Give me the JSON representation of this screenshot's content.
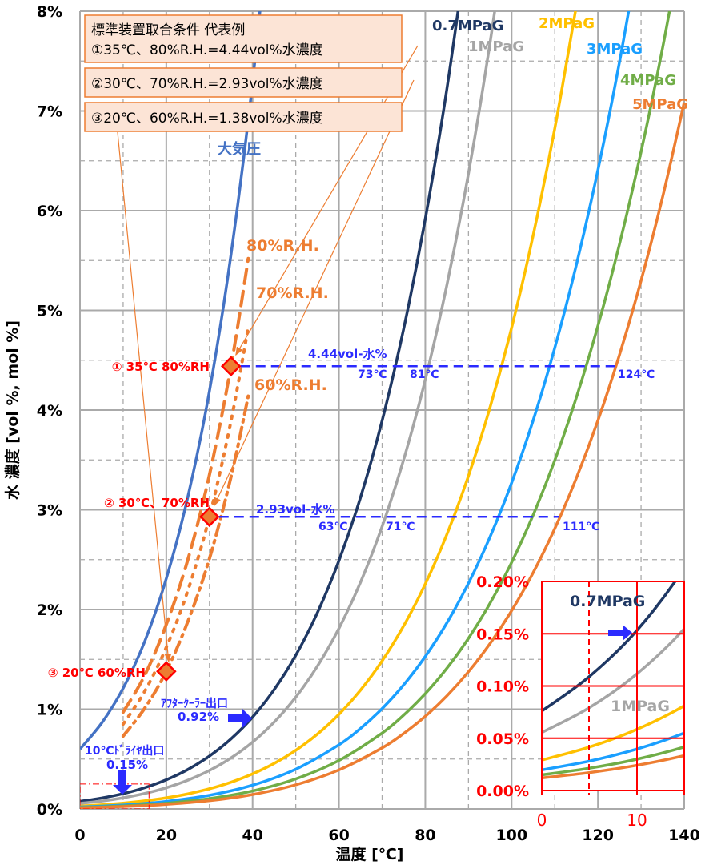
{
  "chart_data": {
    "type": "line",
    "xlabel": "温度 [℃]",
    "ylabel": "水 濃度 [vol %, mol %]",
    "xlim": [
      0,
      140
    ],
    "ylim": [
      0,
      8
    ],
    "x_ticks": [
      "0",
      "20",
      "40",
      "60",
      "80",
      "100",
      "120",
      "140"
    ],
    "y_ticks": [
      "0%",
      "1%",
      "2%",
      "3%",
      "4%",
      "5%",
      "6%",
      "7%",
      "8%"
    ],
    "grid": "solid major, dashed minor",
    "series": [
      {
        "name": "大気圧",
        "color": "#4472C4",
        "points": [
          [
            0,
            0.6
          ],
          [
            5,
            0.86
          ],
          [
            10,
            1.21
          ],
          [
            15,
            1.68
          ],
          [
            20,
            2.31
          ],
          [
            25,
            3.13
          ],
          [
            30,
            4.19
          ],
          [
            35,
            5.56
          ],
          [
            40,
            7.29
          ],
          [
            45,
            9.47
          ]
        ]
      },
      {
        "name": "0.7MPaG",
        "color": "#1F3864",
        "points": [
          [
            0,
            0.076
          ],
          [
            5,
            0.109
          ],
          [
            10,
            0.153
          ],
          [
            15,
            0.213
          ],
          [
            20,
            0.292
          ],
          [
            25,
            0.395
          ],
          [
            30,
            0.53
          ],
          [
            35,
            0.702
          ],
          [
            40,
            0.921
          ],
          [
            45,
            1.197
          ],
          [
            50,
            1.541
          ],
          [
            55,
            1.967
          ],
          [
            60,
            2.49
          ],
          [
            65,
            3.125
          ],
          [
            70,
            3.894
          ],
          [
            75,
            4.817
          ],
          [
            80,
            5.917
          ],
          [
            85,
            7.222
          ],
          [
            90,
            8.758
          ]
        ]
      },
      {
        "name": "1MPaG",
        "color": "#A5A5A5",
        "points": [
          [
            0,
            0.0555
          ],
          [
            5,
            0.0792
          ],
          [
            10,
            0.1115
          ],
          [
            15,
            0.1548
          ],
          [
            20,
            0.2124
          ],
          [
            25,
            0.2878
          ],
          [
            30,
            0.3855
          ],
          [
            35,
            0.511
          ],
          [
            40,
            0.67
          ],
          [
            45,
            0.871
          ],
          [
            50,
            1.121
          ],
          [
            55,
            1.431
          ],
          [
            60,
            1.811
          ],
          [
            65,
            2.274
          ],
          [
            70,
            2.833
          ],
          [
            75,
            3.505
          ],
          [
            80,
            4.305
          ],
          [
            85,
            5.255
          ],
          [
            90,
            6.372
          ],
          [
            95,
            7.683
          ],
          [
            100,
            9.207
          ]
        ]
      },
      {
        "name": "2MPaG",
        "color": "#FFC000",
        "points": [
          [
            0,
            0.0291
          ],
          [
            5,
            0.0415
          ],
          [
            10,
            0.0584
          ],
          [
            15,
            0.0811
          ],
          [
            20,
            0.1113
          ],
          [
            25,
            0.1508
          ],
          [
            30,
            0.2021
          ],
          [
            35,
            0.2678
          ],
          [
            40,
            0.3514
          ],
          [
            45,
            0.4565
          ],
          [
            50,
            0.5877
          ],
          [
            55,
            0.75
          ],
          [
            60,
            0.949
          ],
          [
            65,
            1.192
          ],
          [
            70,
            1.485
          ],
          [
            75,
            1.837
          ],
          [
            80,
            2.256
          ],
          [
            85,
            2.754
          ],
          [
            90,
            3.34
          ],
          [
            95,
            4.027
          ],
          [
            100,
            4.826
          ],
          [
            105,
            5.754
          ],
          [
            110,
            6.824
          ],
          [
            115,
            8.052
          ]
        ]
      },
      {
        "name": "3MPaG",
        "color": "#1A9FFF",
        "points": [
          [
            0,
            0.0197
          ],
          [
            5,
            0.0281
          ],
          [
            10,
            0.0396
          ],
          [
            15,
            0.055
          ],
          [
            20,
            0.0754
          ],
          [
            30,
            0.1369
          ],
          [
            40,
            0.2381
          ],
          [
            50,
            0.398
          ],
          [
            60,
            0.643
          ],
          [
            65,
            0.807
          ],
          [
            70,
            1.006
          ],
          [
            75,
            1.245
          ],
          [
            80,
            1.529
          ],
          [
            85,
            1.866
          ],
          [
            90,
            2.263
          ],
          [
            95,
            2.728
          ],
          [
            100,
            3.27
          ],
          [
            105,
            3.898
          ],
          [
            110,
            4.624
          ],
          [
            115,
            5.456
          ],
          [
            120,
            6.407
          ],
          [
            125,
            7.49
          ],
          [
            130,
            8.716
          ]
        ]
      },
      {
        "name": "4MPaG",
        "color": "#70AD47",
        "points": [
          [
            0,
            0.0149
          ],
          [
            5,
            0.0213
          ],
          [
            10,
            0.0299
          ],
          [
            15,
            0.0416
          ],
          [
            20,
            0.057
          ],
          [
            30,
            0.1035
          ],
          [
            40,
            0.18
          ],
          [
            50,
            0.301
          ],
          [
            60,
            0.486
          ],
          [
            70,
            0.761
          ],
          [
            75,
            0.941
          ],
          [
            80,
            1.156
          ],
          [
            85,
            1.411
          ],
          [
            90,
            1.711
          ],
          [
            95,
            2.063
          ],
          [
            100,
            2.472
          ],
          [
            105,
            2.948
          ],
          [
            110,
            3.496
          ],
          [
            115,
            4.126
          ],
          [
            120,
            4.845
          ],
          [
            125,
            5.664
          ],
          [
            130,
            6.59
          ],
          [
            135,
            7.634
          ],
          [
            140,
            8.814
          ]
        ]
      },
      {
        "name": "5MPaG",
        "color": "#ED7D31",
        "points": [
          [
            0,
            0.012
          ],
          [
            5,
            0.0171
          ],
          [
            10,
            0.0241
          ],
          [
            15,
            0.0334
          ],
          [
            20,
            0.0459
          ],
          [
            30,
            0.0832
          ],
          [
            40,
            0.1447
          ],
          [
            50,
            0.242
          ],
          [
            60,
            0.391
          ],
          [
            70,
            0.612
          ],
          [
            75,
            0.757
          ],
          [
            80,
            0.929
          ],
          [
            85,
            1.134
          ],
          [
            90,
            1.376
          ],
          [
            95,
            1.659
          ],
          [
            100,
            1.988
          ],
          [
            105,
            2.37
          ],
          [
            110,
            2.811
          ],
          [
            115,
            3.317
          ],
          [
            120,
            3.895
          ],
          [
            125,
            4.554
          ],
          [
            130,
            5.299
          ],
          [
            135,
            6.138
          ],
          [
            140,
            7.086
          ]
        ]
      }
    ],
    "rh_series": [
      {
        "name": "80%R.H.",
        "color": "#ED7D31",
        "dash": "long-dash",
        "points": [
          [
            10,
            0.97
          ],
          [
            15,
            1.34
          ],
          [
            20,
            1.85
          ],
          [
            25,
            2.5
          ],
          [
            30,
            3.35
          ],
          [
            35,
            4.44
          ],
          [
            39,
            5.52
          ]
        ]
      },
      {
        "name": "70%R.H.",
        "color": "#ED7D31",
        "dash": "dot",
        "points": [
          [
            10,
            0.85
          ],
          [
            15,
            1.18
          ],
          [
            20,
            1.62
          ],
          [
            25,
            2.19
          ],
          [
            30,
            2.93
          ],
          [
            35,
            3.89
          ],
          [
            39,
            4.83
          ]
        ]
      },
      {
        "name": "60%R.H.",
        "color": "#ED7D31",
        "dash": "dash-dot",
        "points": [
          [
            10,
            0.73
          ],
          [
            15,
            1.01
          ],
          [
            20,
            1.38
          ],
          [
            25,
            1.88
          ],
          [
            30,
            2.51
          ],
          [
            35,
            3.33
          ],
          [
            39,
            4.14
          ]
        ]
      }
    ],
    "markers": [
      {
        "label": "① 35℃ 80%RH",
        "x": 35,
        "y": 4.44
      },
      {
        "label": "② 30℃、70%RH",
        "x": 30,
        "y": 2.93
      },
      {
        "label": "③ 20℃ 60%RH",
        "x": 20,
        "y": 1.38
      }
    ],
    "hlines": [
      {
        "label": "4.44vol-水%",
        "y": 4.44,
        "x_from": 35,
        "x_to": 124,
        "temps": [
          "73℃",
          "81℃",
          "124℃"
        ]
      },
      {
        "label": "2.93vol-水%",
        "y": 2.93,
        "x_from": 30,
        "x_to": 111,
        "temps": [
          "63℃",
          "71℃",
          "111℃"
        ]
      }
    ],
    "annotations": {
      "aftercooler": [
        "ｱﾌﾀｰｸｰﾗｰ出口",
        "0.92%"
      ],
      "dryer": [
        "10℃ﾄﾞﾗｲﾔ出口",
        "0.15%"
      ]
    },
    "legend_box": [
      "標準装置取合条件 代表例",
      "①35℃、80%R.H.=4.44vol%水濃度",
      "②30℃、70%R.H.=2.93vol%水濃度",
      "③20℃、60%R.H.=1.38vol%水濃度"
    ],
    "inset": {
      "xlim": [
        0,
        15
      ],
      "ylim": [
        0,
        0.2
      ],
      "x_ticks": [
        "0",
        "10"
      ],
      "y_ticks": [
        "0.00%",
        "0.05%",
        "0.10%",
        "0.15%",
        "0.20%"
      ],
      "labels": [
        "0.7MPaG",
        "1MPaG"
      ],
      "color": "#FF0000"
    }
  }
}
